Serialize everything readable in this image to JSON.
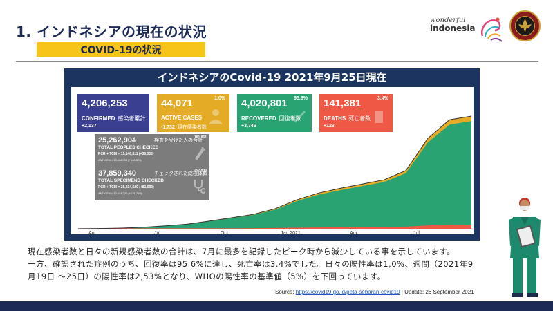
{
  "slide": {
    "title": "1. インドネシアの現在の状況",
    "subtitle": "COVID-19の状況"
  },
  "logo": {
    "wonderful": "wonderful",
    "indonesia": "indonesia"
  },
  "dashboard": {
    "title": "インドネシアのCovid-19 2021年9月25日現在",
    "cards": [
      {
        "value": "4,206,253",
        "label": "CONFIRMED",
        "label_jp": "感染者累計",
        "change": "+2,137",
        "pct": "",
        "color": "#3a3f91"
      },
      {
        "value": "44,071",
        "label": "ACTIVE CASES",
        "label_jp": "現在感染者数",
        "change": "-1,732",
        "pct": "1.0%",
        "color": "#e4ab27"
      },
      {
        "value": "4,020,801",
        "label": "RECOVERED",
        "label_jp": "回復者数",
        "change": "+3,746",
        "pct": "95.6%",
        "color": "#2aa373"
      },
      {
        "value": "141,381",
        "label": "DEATHS",
        "label_jp": "死亡者数",
        "change": "+123",
        "pct": "3.4%",
        "color": "#ee5945"
      }
    ],
    "gray_cards": [
      {
        "value": "25,262,904",
        "label_jp": "検査を受けた人の合計",
        "pct": "181,861",
        "label": "TOTAL PEOPLES CHECKED",
        "sub": "PCR + TCM = 15,148,811 (+38,038)",
        "sub2": "ANTIGEN = 10,114,093 (+143,823)"
      },
      {
        "value": "37,859,340",
        "label_jp": "チェックされた総検体数",
        "pct": "257,803",
        "label": "TOTAL SPECIMENS CHECKED",
        "sub": "PCR + TCM = 25,234,620 (+81,093)",
        "sub2": "ANTIGEN = 12,624,720 (+176,710)"
      }
    ],
    "x_ticks": [
      "Apr",
      "Jul",
      "Oct",
      "Jan 2021",
      "Apr",
      "Jul"
    ]
  },
  "chart_data": {
    "type": "area",
    "x": [
      "2020-03",
      "2020-04",
      "2020-05",
      "2020-06",
      "2020-07",
      "2020-08",
      "2020-09",
      "2020-10",
      "2020-11",
      "2020-12",
      "2021-01",
      "2021-02",
      "2021-03",
      "2021-04",
      "2021-05",
      "2021-06",
      "2021-07",
      "2021-08",
      "2021-09"
    ],
    "series": [
      {
        "name": "",
        "values": [
          0.001,
          0.01,
          0.026,
          0.057,
          0.108,
          0.175,
          0.287,
          0.41,
          0.538,
          0.743,
          1.078,
          1.334,
          1.511,
          1.669,
          1.827,
          2.175,
          3.372,
          4.073,
          4.206
        ]
      }
    ],
    "colors": [
      "#2aa373",
      "#e4ab27",
      "#ee5945"
    ]
  },
  "body_text": [
    "現在感染者数と日々の新規感染者数の合計は、7月に最多を記録したピーク時から減少している事を示しています。",
    "一方、確認された症例のうち、回復率は95.6%に達し、死亡率は3.4%でした。日々の陽性率は1,0%、週間（2021年9",
    "月19日 ～25日）の陽性率は2,53%となり、WHOの陽性率の基準値（5%）を下回っています。"
  ],
  "source": {
    "prefix": "Source: ",
    "link": "https://covid19.go.id/peta-sebaran-covid19",
    "suffix": " | Update: 26 September 2021"
  }
}
